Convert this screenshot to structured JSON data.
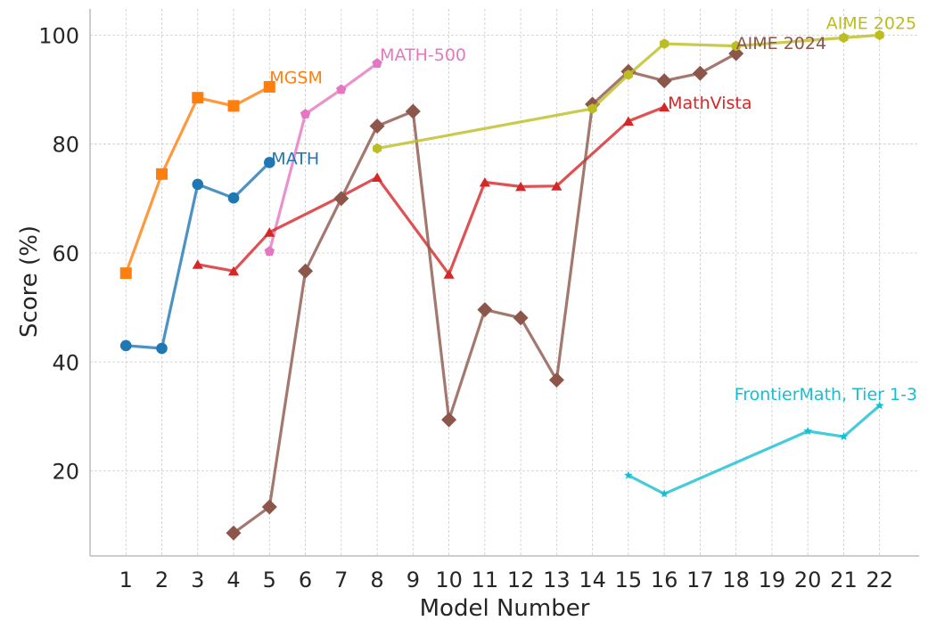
{
  "chart_data": {
    "type": "line",
    "title": "",
    "xlabel": "Model Number",
    "ylabel": "Score (%)",
    "xlim": [
      0,
      23.1
    ],
    "ylim": [
      4.4,
      104.8
    ],
    "x_ticks": [
      1,
      2,
      3,
      4,
      5,
      6,
      7,
      8,
      9,
      10,
      11,
      12,
      13,
      14,
      15,
      16,
      17,
      18,
      19,
      20,
      21,
      22
    ],
    "x_tick_labels": [
      "1",
      "2",
      "3",
      "4",
      "5",
      "6",
      "7",
      "8",
      "9",
      "10",
      "11",
      "12",
      "13",
      "14",
      "15",
      "16",
      "17",
      "18",
      "19",
      "20",
      "21",
      "22"
    ],
    "y_ticks": [
      20,
      40,
      60,
      80,
      100
    ],
    "y_tick_labels": [
      "20",
      "40",
      "60",
      "80",
      "100"
    ],
    "grid": true,
    "legend": "inline labels at series ends",
    "series": [
      {
        "name": "MGSM",
        "color": "#ff7f0e",
        "marker": "square",
        "x": [
          1,
          2,
          3,
          4,
          5
        ],
        "values": [
          56.3,
          74.5,
          88.5,
          87.0,
          90.5
        ]
      },
      {
        "name": "MATH",
        "color": "#1f77b4",
        "marker": "circle",
        "x": [
          1,
          2,
          3,
          4,
          5
        ],
        "values": [
          43.0,
          42.5,
          72.6,
          70.1,
          76.6
        ]
      },
      {
        "name": "MATH-500",
        "color": "#e377c2",
        "marker": "pentagon",
        "x": [
          5,
          6,
          7,
          8
        ],
        "values": [
          60.3,
          85.5,
          90.0,
          94.8
        ]
      },
      {
        "name": "MathVista",
        "color": "#d62728",
        "marker": "triangle",
        "x": [
          3,
          4,
          5,
          7,
          8,
          10,
          11,
          12,
          13,
          15,
          16
        ],
        "values": [
          57.9,
          56.7,
          63.8,
          70.4,
          73.9,
          56.1,
          73.0,
          72.2,
          72.3,
          84.2,
          86.8
        ]
      },
      {
        "name": "AIME 2024",
        "color": "#8c564b",
        "marker": "diamond",
        "x": [
          4,
          5,
          6,
          7,
          8,
          9,
          10,
          11,
          12,
          13,
          14,
          15,
          16,
          17,
          18
        ],
        "values": [
          8.6,
          13.4,
          56.7,
          70.0,
          83.3,
          86.0,
          29.4,
          49.6,
          48.1,
          36.7,
          87.3,
          93.3,
          91.6,
          93.0,
          96.6
        ]
      },
      {
        "name": "AIME 2025",
        "color": "#bcbd22",
        "marker": "hexagon",
        "x": [
          8,
          14,
          15,
          16,
          18,
          21,
          22
        ],
        "values": [
          79.2,
          86.5,
          92.7,
          98.4,
          98.0,
          99.5,
          100.0
        ]
      },
      {
        "name": "FrontierMath, Tier 1-3",
        "color": "#17becf",
        "marker": "star",
        "x": [
          15,
          16,
          20,
          21,
          22
        ],
        "values": [
          19.2,
          15.8,
          27.3,
          26.3,
          32.0
        ]
      }
    ]
  }
}
